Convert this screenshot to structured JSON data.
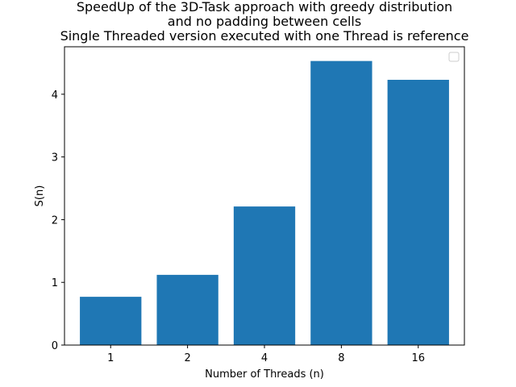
{
  "chart_data": {
    "type": "bar",
    "title_lines": [
      "SpeedUp of the 3D-Task approach with greedy distribution",
      "and no padding between cells",
      "Single Threaded version executed with one Thread is reference"
    ],
    "xlabel": "Number of Threads (n)",
    "ylabel": "S(n)",
    "categories": [
      "1",
      "2",
      "4",
      "8",
      "16"
    ],
    "values": [
      0.77,
      1.12,
      2.21,
      4.53,
      4.23
    ],
    "ylim": [
      0,
      4.757
    ],
    "yticks": [
      0,
      1,
      2,
      3,
      4
    ],
    "bar_color": "#1f77b4",
    "grid": false,
    "legend": {
      "placement": "top-right",
      "entries": []
    }
  }
}
